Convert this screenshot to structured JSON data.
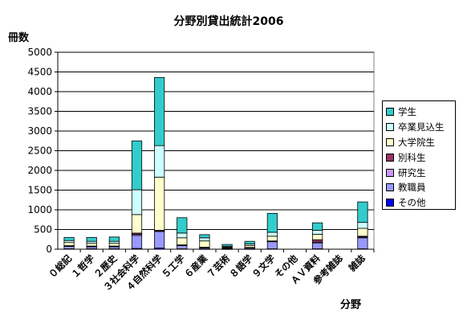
{
  "chart_data": {
    "type": "bar",
    "stacked": true,
    "title": "分野別貸出統計2006",
    "ylabel": "冊数",
    "xlabel": "分野",
    "ylim": [
      0,
      5000
    ],
    "yticks": [
      0,
      500,
      1000,
      1500,
      2000,
      2500,
      3000,
      3500,
      4000,
      4500,
      5000
    ],
    "grid": true,
    "legend_position": "right",
    "categories": [
      "０総記",
      "１哲学",
      "２歴史",
      "３社会科学",
      "４自然科学",
      "５工学",
      "６産業",
      "７芸術",
      "８語学",
      "９文学",
      "その他",
      "ＡＶ資料",
      "参考雑誌",
      "雑誌"
    ],
    "series": [
      {
        "name": "その他",
        "color": "#0000ff",
        "values": [
          10,
          10,
          10,
          20,
          30,
          10,
          5,
          5,
          5,
          10,
          0,
          10,
          0,
          10
        ]
      },
      {
        "name": "教職員",
        "color": "#9999ff",
        "values": [
          60,
          50,
          50,
          330,
          420,
          80,
          30,
          20,
          30,
          180,
          0,
          150,
          0,
          280
        ]
      },
      {
        "name": "研究生",
        "color": "#cc99ff",
        "values": [
          10,
          10,
          10,
          30,
          20,
          10,
          5,
          5,
          5,
          10,
          0,
          20,
          0,
          20
        ]
      },
      {
        "name": "別科生",
        "color": "#993366",
        "values": [
          10,
          10,
          10,
          30,
          10,
          10,
          10,
          5,
          5,
          10,
          0,
          60,
          0,
          20
        ]
      },
      {
        "name": "大学院生",
        "color": "#ffffcc",
        "values": [
          80,
          70,
          70,
          470,
          1350,
          180,
          160,
          20,
          50,
          120,
          0,
          140,
          0,
          200
        ]
      },
      {
        "name": "卒業見込生",
        "color": "#ccffff",
        "values": [
          50,
          50,
          50,
          630,
          800,
          120,
          80,
          20,
          40,
          100,
          0,
          100,
          0,
          150
        ]
      },
      {
        "name": "学生",
        "color": "#33cccc",
        "values": [
          80,
          100,
          110,
          1240,
          1730,
          390,
          80,
          45,
          65,
          480,
          0,
          190,
          0,
          520
        ]
      }
    ]
  },
  "legend_order": [
    "学生",
    "卒業見込生",
    "大学院生",
    "別科生",
    "研究生",
    "教職員",
    "その他"
  ],
  "colors": {
    "plot_background": "#ffffff",
    "gridline": "#000000",
    "bar_outline": "#000000"
  }
}
